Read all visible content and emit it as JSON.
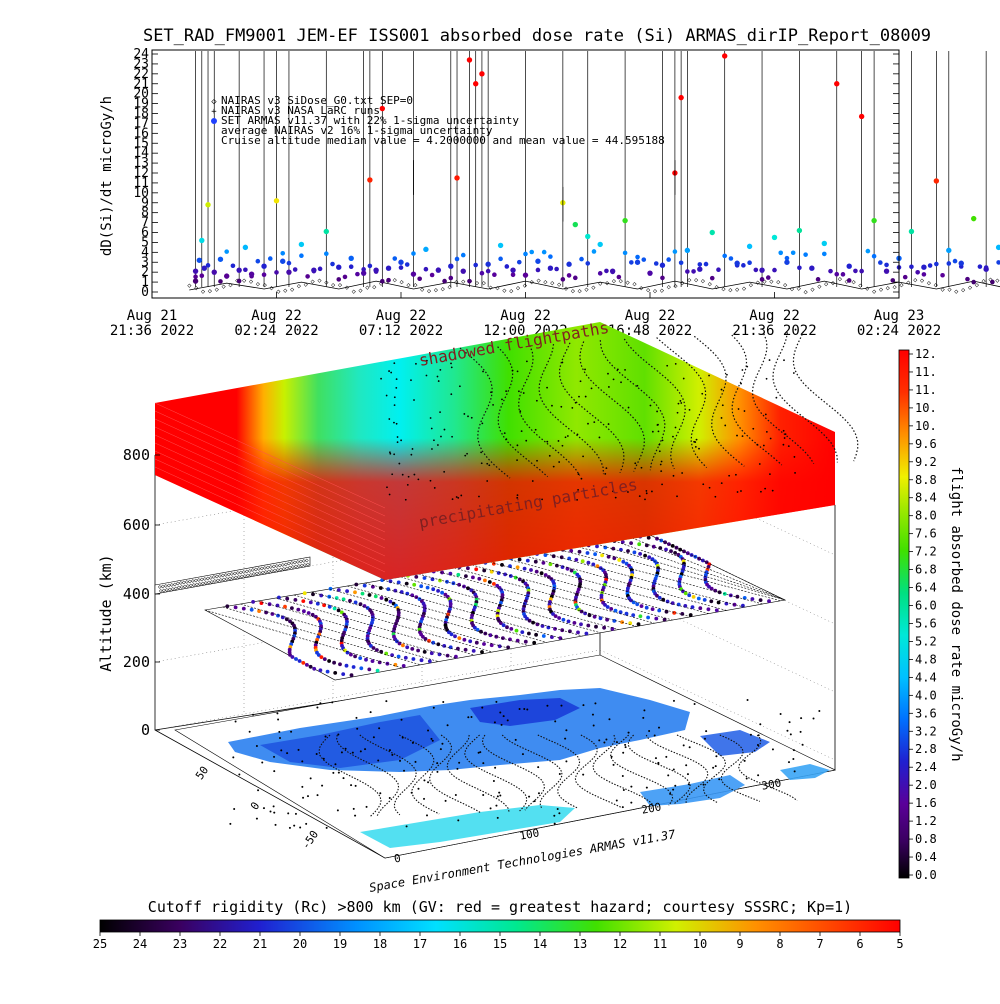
{
  "chart_data": [
    {
      "type": "scatter",
      "title": "SET_RAD_FM9001  JEM-EF ISS001 absorbed dose rate (Si) ARMAS_dirIP_Report_08009",
      "ylabel": "dD(Si)/dt microGy/h",
      "ylim": [
        0,
        24
      ],
      "y_ticks": [
        "0",
        "1",
        "2",
        "3",
        "4",
        "5",
        "6",
        "7",
        "8",
        "9",
        "10",
        "11",
        "12",
        "13",
        "14",
        "15",
        "16",
        "17",
        "18",
        "19",
        "20",
        "21",
        "22",
        "23",
        "24"
      ],
      "x_ticks": [
        {
          "l1": "Aug 21",
          "l2": "21:36 2022"
        },
        {
          "l1": "Aug 22",
          "l2": "02:24 2022"
        },
        {
          "l1": "Aug 22",
          "l2": "07:12 2022"
        },
        {
          "l1": "Aug 22",
          "l2": "12:00 2022"
        },
        {
          "l1": "Aug 22",
          "l2": "16:48 2022"
        },
        {
          "l1": "Aug 22",
          "l2": "21:36 2022"
        },
        {
          "l1": "Aug 23",
          "l2": "02:24 2022"
        }
      ],
      "legend": [
        "NAIRAS v3 SiDose_G0.txt SEP=0",
        "NAIRAS v3 NASA LaRC runs",
        "SET ARMAS v11.37 with 22% 1-sigma uncertainty",
        "average NAIRAS v2 16% 1-sigma uncertainty",
        "Cruise altitude median value = 4.2000000 and mean value = 44.595188"
      ],
      "legend_symbols": [
        "◇",
        "+",
        "●",
        "",
        ""
      ],
      "cruise_median": 4.2,
      "cruise_mean": 44.595188,
      "series": [
        {
          "name": "SET ARMAS v11.37 with 22% 1-sigma uncertainty",
          "values": [
            [
              0.35,
              1.1
            ],
            [
              0.35,
              2.1
            ],
            [
              0.38,
              3.2
            ],
            [
              0.4,
              5.2
            ],
            [
              0.42,
              2.4
            ],
            [
              0.45,
              8.8
            ],
            [
              0.5,
              2.0
            ],
            [
              0.55,
              3.3
            ],
            [
              0.6,
              1.6
            ],
            [
              0.7,
              2.2
            ],
            [
              0.75,
              4.5
            ],
            [
              0.8,
              1.8
            ],
            [
              0.9,
              2.6
            ],
            [
              1.0,
              9.2
            ],
            [
              1.05,
              3.1
            ],
            [
              1.1,
              2.0
            ],
            [
              1.2,
              4.8
            ],
            [
              1.3,
              2.2
            ],
            [
              1.4,
              6.1
            ],
            [
              1.5,
              2.5
            ],
            [
              1.6,
              3.4
            ],
            [
              1.7,
              1.9
            ],
            [
              1.75,
              11.3
            ],
            [
              1.8,
              2.2
            ],
            [
              1.85,
              18.5
            ],
            [
              1.9,
              2.4
            ],
            [
              2.0,
              3.0
            ],
            [
              2.1,
              1.8
            ],
            [
              2.2,
              4.3
            ],
            [
              2.3,
              2.2
            ],
            [
              2.4,
              2.6
            ],
            [
              2.45,
              11.5
            ],
            [
              2.5,
              2.1
            ],
            [
              2.55,
              23.4
            ],
            [
              2.6,
              21.0
            ],
            [
              2.65,
              22.0
            ],
            [
              2.7,
              2.8
            ],
            [
              2.8,
              4.7
            ],
            [
              2.9,
              2.2
            ],
            [
              3.0,
              1.7
            ],
            [
              3.1,
              3.1
            ],
            [
              3.2,
              2.4
            ],
            [
              3.3,
              9.0
            ],
            [
              3.35,
              2.8
            ],
            [
              3.4,
              6.8
            ],
            [
              3.5,
              5.6
            ],
            [
              3.6,
              4.8
            ],
            [
              3.7,
              2.1
            ],
            [
              3.8,
              7.2
            ],
            [
              3.9,
              3.0
            ],
            [
              4.0,
              1.9
            ],
            [
              4.1,
              2.7
            ],
            [
              4.2,
              12.0
            ],
            [
              4.25,
              19.6
            ],
            [
              4.3,
              4.2
            ],
            [
              4.4,
              2.3
            ],
            [
              4.5,
              6.0
            ],
            [
              4.6,
              23.8
            ],
            [
              4.7,
              2.9
            ],
            [
              4.8,
              4.6
            ],
            [
              4.9,
              2.2
            ],
            [
              5.0,
              5.5
            ],
            [
              5.1,
              3.0
            ],
            [
              5.2,
              6.2
            ],
            [
              5.3,
              2.4
            ],
            [
              5.4,
              4.9
            ],
            [
              5.5,
              21.0
            ],
            [
              5.6,
              2.6
            ],
            [
              5.7,
              17.7
            ],
            [
              5.8,
              7.2
            ],
            [
              5.9,
              2.1
            ],
            [
              6.0,
              3.4
            ],
            [
              6.1,
              6.1
            ],
            [
              6.2,
              2.5
            ],
            [
              6.3,
              11.2
            ],
            [
              6.4,
              4.2
            ],
            [
              6.5,
              2.9
            ],
            [
              6.6,
              7.4
            ],
            [
              6.7,
              2.3
            ],
            [
              6.8,
              4.5
            ],
            [
              6.9,
              13.2
            ],
            [
              7.0,
              3.1
            ],
            [
              7.1,
              6.6
            ],
            [
              7.2,
              11.6
            ],
            [
              7.3,
              2.7
            ],
            [
              7.4,
              23.8
            ],
            [
              7.5,
              4.3
            ],
            [
              7.6,
              2.4
            ],
            [
              7.7,
              9.6
            ],
            [
              7.8,
              2.8
            ],
            [
              7.9,
              6.9
            ],
            [
              8.0,
              2.2
            ],
            [
              8.1,
              7.6
            ],
            [
              8.2,
              3.5
            ],
            [
              8.3,
              9.4
            ],
            [
              8.4,
              2.6
            ],
            [
              8.5,
              8.4
            ],
            [
              8.6,
              5.6
            ],
            [
              8.7,
              2.5
            ],
            [
              8.8,
              6.4
            ],
            [
              8.9,
              17.8
            ],
            [
              9.0,
              3.0
            ],
            [
              9.1,
              7.1
            ],
            [
              9.2,
              2.4
            ],
            [
              9.3,
              7.5
            ],
            [
              9.4,
              4.8
            ],
            [
              9.5,
              2.6
            ],
            [
              9.6,
              11.5
            ],
            [
              9.7,
              23.6
            ],
            [
              9.8,
              2.6
            ],
            [
              9.9,
              8.3
            ],
            [
              10.0,
              3.2
            ],
            [
              10.1,
              15.4
            ],
            [
              10.2,
              2.3
            ],
            [
              10.3,
              6.1
            ],
            [
              10.4,
              7.5
            ],
            [
              10.5,
              10.9
            ],
            [
              10.6,
              2.8
            ],
            [
              10.7,
              23.7
            ],
            [
              10.8,
              9.2
            ],
            [
              10.9,
              4.2
            ],
            [
              11.0,
              6.9
            ],
            [
              11.1,
              3.0
            ],
            [
              11.2,
              2.5
            ]
          ]
        },
        {
          "name": "NAIRAS v3 SiDose_G0.txt SEP=0",
          "values": [
            [
              0.3,
              0.2
            ],
            [
              0.6,
              0.9
            ],
            [
              0.9,
              0.3
            ],
            [
              1.2,
              1.0
            ],
            [
              1.5,
              0.3
            ],
            [
              1.8,
              1.1
            ],
            [
              2.1,
              0.3
            ],
            [
              2.4,
              1.0
            ],
            [
              2.7,
              0.3
            ],
            [
              3.0,
              1.1
            ],
            [
              3.3,
              0.3
            ],
            [
              3.6,
              1.0
            ],
            [
              3.9,
              0.3
            ],
            [
              4.2,
              1.1
            ],
            [
              4.5,
              0.3
            ],
            [
              4.8,
              1.0
            ],
            [
              5.1,
              0.3
            ],
            [
              5.4,
              1.1
            ],
            [
              5.7,
              0.3
            ],
            [
              6.0,
              1.0
            ],
            [
              6.3,
              0.3
            ],
            [
              6.6,
              1.1
            ],
            [
              6.9,
              0.3
            ],
            [
              7.2,
              1.0
            ],
            [
              7.5,
              0.3
            ],
            [
              7.8,
              1.1
            ],
            [
              8.1,
              0.3
            ],
            [
              8.4,
              1.0
            ],
            [
              8.7,
              0.3
            ],
            [
              9.0,
              1.1
            ],
            [
              9.3,
              0.3
            ],
            [
              9.6,
              1.0
            ],
            [
              9.9,
              0.3
            ],
            [
              10.2,
              1.1
            ],
            [
              10.5,
              0.3
            ],
            [
              10.8,
              1.0
            ],
            [
              11.1,
              0.3
            ]
          ]
        }
      ]
    },
    {
      "type": "heatmap",
      "subtitle": "3-D view: flight path over altitude, latitude and longitude",
      "ylabel": "Altitude (km)",
      "z_ticks": [
        "0",
        "200",
        "400",
        "600",
        "800"
      ],
      "lat_ticks": [
        "50",
        "0",
        "-50"
      ],
      "lon_ticks": [
        "0",
        "100",
        "200",
        "300"
      ],
      "annotations": [
        "shadowed flightpaths",
        "precipitating particles"
      ],
      "credit": "Space Environment Technologies ARMAS v11.37"
    },
    {
      "type": "heatmap",
      "subtitle": "colorbar",
      "label": "flight absorbed dose rate microGy/h",
      "ticks": [
        "12.",
        "11.",
        "11.",
        "10.",
        "10.",
        "9.6",
        "9.2",
        "8.8",
        "8.4",
        "8.0",
        "7.6",
        "7.2",
        "6.8",
        "6.4",
        "6.0",
        "5.6",
        "5.2",
        "4.8",
        "4.4",
        "4.0",
        "3.6",
        "3.2",
        "2.8",
        "2.4",
        "2.0",
        "1.6",
        "1.2",
        "0.8",
        "0.4",
        "0.0"
      ],
      "range": [
        0,
        12
      ]
    },
    {
      "type": "heatmap",
      "subtitle": "colorbar",
      "label": "Cutoff rigidity (Rc) >800 km (GV: red = greatest hazard; courtesy SSSRC; Kp=1)",
      "ticks": [
        "25",
        "24",
        "23",
        "22",
        "21",
        "20",
        "19",
        "18",
        "17",
        "16",
        "15",
        "14",
        "13",
        "12",
        "11",
        "10",
        "9",
        "8",
        "7",
        "6",
        "5"
      ],
      "range": [
        25,
        5
      ]
    }
  ]
}
